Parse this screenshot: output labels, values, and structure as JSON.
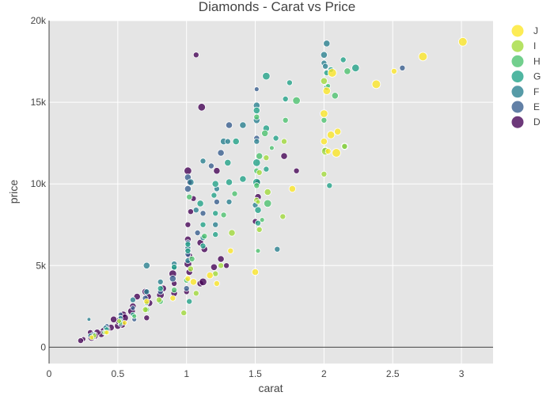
{
  "chart_data": {
    "type": "scatter",
    "title": "Diamonds - Carat vs Price",
    "xlabel": "carat",
    "ylabel": "price",
    "xlim": [
      0,
      3.23
    ],
    "ylim": [
      -1000,
      20000
    ],
    "x_ticks": [
      0,
      0.5,
      1,
      1.5,
      2,
      2.5,
      3
    ],
    "x_tick_labels": [
      "0",
      "0.5",
      "1",
      "1.5",
      "2",
      "2.5",
      "3"
    ],
    "y_ticks": [
      0,
      5000,
      10000,
      15000,
      20000
    ],
    "y_tick_labels": [
      "0",
      "5k",
      "10k",
      "15k",
      "20k"
    ],
    "legend_position": "top-right",
    "size_encoding": "marker size varies by point",
    "series": [
      {
        "name": "J",
        "color": "#fde725",
        "points": [
          [
            3.01,
            18700,
            9
          ],
          [
            2.72,
            17800,
            9
          ],
          [
            2.38,
            16100,
            9
          ],
          [
            2.06,
            16800,
            9
          ],
          [
            2.51,
            16900,
            6
          ],
          [
            2.02,
            15700,
            8
          ],
          [
            2.0,
            14300,
            8
          ],
          [
            2.05,
            13000,
            8
          ],
          [
            2.1,
            13200,
            7
          ],
          [
            2.0,
            12600,
            7
          ],
          [
            2.03,
            12000,
            6
          ],
          [
            2.09,
            11900,
            9
          ],
          [
            1.77,
            9700,
            7
          ],
          [
            1.5,
            4600,
            7
          ],
          [
            1.32,
            5900,
            6
          ],
          [
            1.05,
            4000,
            7
          ],
          [
            1.22,
            3900,
            6
          ],
          [
            1.17,
            4400,
            7
          ],
          [
            0.9,
            3000,
            6
          ],
          [
            1.01,
            4200,
            6
          ],
          [
            0.71,
            2800,
            6
          ],
          [
            0.55,
            1500,
            5
          ],
          [
            0.42,
            900,
            5
          ],
          [
            0.31,
            600,
            5
          ]
        ]
      },
      {
        "name": "I",
        "color": "#a0da39",
        "points": [
          [
            2.15,
            12300,
            6
          ],
          [
            2.0,
            10600,
            6
          ],
          [
            2.01,
            12000,
            8
          ],
          [
            1.7,
            8000,
            6
          ],
          [
            1.59,
            9500,
            7
          ],
          [
            1.51,
            9000,
            6
          ],
          [
            1.33,
            7000,
            7
          ],
          [
            1.07,
            3300,
            6
          ],
          [
            1.25,
            5000,
            6
          ],
          [
            1.03,
            4800,
            6
          ],
          [
            0.98,
            2100,
            6
          ],
          [
            1.21,
            4500,
            6
          ],
          [
            0.8,
            2900,
            6
          ],
          [
            0.7,
            2300,
            6
          ],
          [
            0.51,
            1600,
            5
          ],
          [
            0.41,
            900,
            5
          ],
          [
            0.33,
            700,
            5
          ],
          [
            2.0,
            16300,
            7
          ],
          [
            1.71,
            12600,
            6
          ],
          [
            1.58,
            11600,
            6
          ],
          [
            1.53,
            10700,
            6
          ],
          [
            1.52,
            8900,
            5
          ],
          [
            1.53,
            7200,
            6
          ]
        ]
      },
      {
        "name": "H",
        "color": "#4ac16d",
        "points": [
          [
            2.08,
            15400,
            7
          ],
          [
            2.17,
            16900,
            7
          ],
          [
            2.0,
            13900,
            6
          ],
          [
            1.8,
            15100,
            8
          ],
          [
            1.72,
            13900,
            6
          ],
          [
            1.57,
            13100,
            7
          ],
          [
            1.53,
            11700,
            7
          ],
          [
            1.51,
            10800,
            6
          ],
          [
            1.59,
            8800,
            8
          ],
          [
            1.52,
            5900,
            5
          ],
          [
            1.35,
            9400,
            6
          ],
          [
            1.27,
            8100,
            6
          ],
          [
            1.13,
            6800,
            6
          ],
          [
            1.04,
            5400,
            6
          ],
          [
            1.0,
            4100,
            6
          ],
          [
            0.91,
            3500,
            6
          ],
          [
            0.81,
            2800,
            6
          ],
          [
            0.71,
            2300,
            6
          ],
          [
            0.62,
            1900,
            5
          ],
          [
            0.52,
            1500,
            5
          ],
          [
            0.4,
            900,
            5
          ],
          [
            0.32,
            600,
            5
          ],
          [
            1.02,
            9200,
            6
          ],
          [
            1.51,
            14100,
            6
          ],
          [
            1.62,
            12200,
            5
          ],
          [
            2.03,
            16000,
            5
          ],
          [
            1.55,
            7800,
            5
          ],
          [
            1.51,
            9900,
            6
          ]
        ]
      },
      {
        "name": "G",
        "color": "#1fa187",
        "points": [
          [
            2.23,
            17100,
            8
          ],
          [
            2.14,
            17600,
            6
          ],
          [
            2.02,
            16800,
            6
          ],
          [
            2.05,
            17000,
            6
          ],
          [
            2.02,
            15900,
            6
          ],
          [
            2.15,
            12300,
            7
          ],
          [
            2.04,
            9900,
            6
          ],
          [
            1.72,
            15200,
            6
          ],
          [
            1.75,
            16200,
            6
          ],
          [
            1.51,
            14500,
            7
          ],
          [
            1.58,
            16600,
            8
          ],
          [
            1.58,
            13400,
            7
          ],
          [
            1.65,
            12800,
            6
          ],
          [
            1.51,
            11300,
            8
          ],
          [
            1.51,
            10100,
            8
          ],
          [
            1.52,
            8400,
            7
          ],
          [
            1.52,
            7600,
            6
          ],
          [
            1.41,
            10300,
            7
          ],
          [
            1.3,
            11300,
            7
          ],
          [
            1.21,
            10000,
            7
          ],
          [
            1.21,
            8200,
            6
          ],
          [
            1.31,
            10100,
            7
          ],
          [
            1.2,
            9300,
            6
          ],
          [
            1.1,
            8800,
            7
          ],
          [
            1.12,
            7500,
            6
          ],
          [
            1.01,
            6300,
            6
          ],
          [
            1.01,
            5900,
            6
          ],
          [
            0.91,
            4900,
            6
          ],
          [
            0.81,
            3600,
            6
          ],
          [
            0.71,
            2700,
            5
          ],
          [
            0.61,
            2000,
            5
          ],
          [
            0.52,
            1600,
            5
          ],
          [
            0.42,
            1100,
            5
          ],
          [
            0.33,
            800,
            4
          ],
          [
            1.12,
            6200,
            6
          ],
          [
            1.21,
            6900,
            6
          ],
          [
            1.02,
            2800,
            6
          ],
          [
            1.58,
            10900,
            6
          ],
          [
            1.36,
            12600,
            7
          ]
        ]
      },
      {
        "name": "F",
        "color": "#277f8e",
        "points": [
          [
            2.02,
            18600,
            7
          ],
          [
            2.0,
            17900,
            7
          ],
          [
            2.0,
            17400,
            6
          ],
          [
            2.01,
            17200,
            6
          ],
          [
            2.01,
            12100,
            6
          ],
          [
            1.51,
            14800,
            7
          ],
          [
            1.51,
            13900,
            7
          ],
          [
            1.41,
            13600,
            7
          ],
          [
            1.27,
            12600,
            7
          ],
          [
            1.3,
            12600,
            6
          ],
          [
            1.12,
            11400,
            6
          ],
          [
            1.03,
            10100,
            7
          ],
          [
            1.22,
            9700,
            6
          ],
          [
            1.31,
            8900,
            6
          ],
          [
            1.07,
            8400,
            6
          ],
          [
            1.12,
            6700,
            6
          ],
          [
            1.01,
            6100,
            6
          ],
          [
            1.01,
            5300,
            6
          ],
          [
            0.91,
            5100,
            6
          ],
          [
            0.71,
            5000,
            7
          ],
          [
            0.81,
            4000,
            6
          ],
          [
            0.71,
            3400,
            6
          ],
          [
            0.61,
            2900,
            6
          ],
          [
            0.52,
            1800,
            5
          ],
          [
            0.41,
            1200,
            5
          ],
          [
            0.3,
            700,
            5
          ],
          [
            0.29,
            1700,
            4
          ],
          [
            1.51,
            12600,
            6
          ],
          [
            1.66,
            6000,
            6
          ],
          [
            1.21,
            7500,
            6
          ],
          [
            1.5,
            8700,
            6
          ]
        ]
      },
      {
        "name": "E",
        "color": "#365c8d",
        "points": [
          [
            2.57,
            17100,
            6
          ],
          [
            1.51,
            15800,
            5
          ],
          [
            1.51,
            12800,
            6
          ],
          [
            1.31,
            13600,
            7
          ],
          [
            1.25,
            11900,
            7
          ],
          [
            1.18,
            11100,
            6
          ],
          [
            1.01,
            10400,
            7
          ],
          [
            1.01,
            9700,
            7
          ],
          [
            1.22,
            8900,
            6
          ],
          [
            1.12,
            8200,
            6
          ],
          [
            1.08,
            7000,
            6
          ],
          [
            1.01,
            6400,
            6
          ],
          [
            1.01,
            5700,
            6
          ],
          [
            0.91,
            4900,
            6
          ],
          [
            0.9,
            4200,
            7
          ],
          [
            0.81,
            3400,
            6
          ],
          [
            0.7,
            3000,
            6
          ],
          [
            0.61,
            2400,
            5
          ],
          [
            0.52,
            2000,
            5
          ],
          [
            0.42,
            1300,
            5
          ],
          [
            0.32,
            800,
            5
          ],
          [
            0.52,
            1400,
            5
          ],
          [
            0.62,
            1700,
            5
          ],
          [
            1.0,
            3600,
            6
          ]
        ]
      },
      {
        "name": "D",
        "color": "#440154",
        "points": [
          [
            1.07,
            17900,
            6
          ],
          [
            1.11,
            14700,
            8
          ],
          [
            1.71,
            11700,
            7
          ],
          [
            1.8,
            10800,
            6
          ],
          [
            1.52,
            10100,
            6
          ],
          [
            1.52,
            9200,
            7
          ],
          [
            1.5,
            7700,
            6
          ],
          [
            1.22,
            10800,
            7
          ],
          [
            1.01,
            10800,
            8
          ],
          [
            1.02,
            10100,
            6
          ],
          [
            1.05,
            9100,
            6
          ],
          [
            1.03,
            8300,
            6
          ],
          [
            1.01,
            7500,
            6
          ],
          [
            1.01,
            6600,
            7
          ],
          [
            1.01,
            6000,
            7
          ],
          [
            1.01,
            5100,
            8
          ],
          [
            1.02,
            4600,
            7
          ],
          [
            0.9,
            4500,
            8
          ],
          [
            0.91,
            3900,
            6
          ],
          [
            1.0,
            3400,
            6
          ],
          [
            0.91,
            3300,
            7
          ],
          [
            0.83,
            3600,
            7
          ],
          [
            0.81,
            3200,
            8
          ],
          [
            0.72,
            3100,
            7
          ],
          [
            0.73,
            2700,
            7
          ],
          [
            0.7,
            3400,
            7
          ],
          [
            0.64,
            3100,
            7
          ],
          [
            0.61,
            2500,
            7
          ],
          [
            0.6,
            2200,
            8
          ],
          [
            0.54,
            2000,
            7
          ],
          [
            0.55,
            1800,
            8
          ],
          [
            0.53,
            1400,
            8
          ],
          [
            0.5,
            1300,
            7
          ],
          [
            0.51,
            1600,
            8
          ],
          [
            0.47,
            1700,
            7
          ],
          [
            0.45,
            1200,
            7
          ],
          [
            0.42,
            1100,
            7
          ],
          [
            0.4,
            1000,
            8
          ],
          [
            0.38,
            800,
            7
          ],
          [
            0.35,
            900,
            7
          ],
          [
            0.33,
            700,
            8
          ],
          [
            0.31,
            600,
            8
          ],
          [
            0.3,
            900,
            6
          ],
          [
            0.25,
            500,
            5
          ],
          [
            0.23,
            400,
            6
          ],
          [
            0.71,
            1800,
            6
          ],
          [
            1.1,
            3900,
            7
          ],
          [
            1.12,
            4000,
            8
          ],
          [
            1.2,
            4900,
            7
          ],
          [
            1.25,
            5400,
            7
          ],
          [
            1.29,
            5000,
            6
          ],
          [
            1.1,
            6400,
            7
          ],
          [
            1.13,
            6000,
            7
          ],
          [
            1.02,
            5600,
            7
          ]
        ]
      }
    ]
  }
}
